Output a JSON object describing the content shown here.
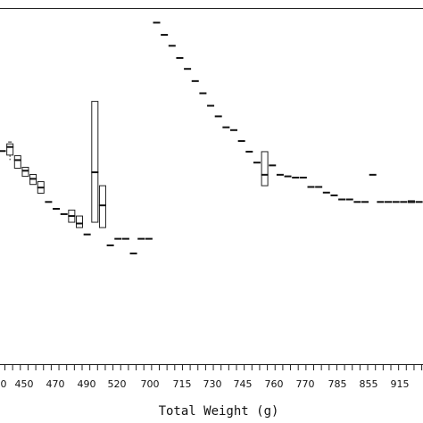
{
  "chart_data": {
    "type": "boxplot",
    "xlabel": "Total Weight (g)",
    "ylabel": "",
    "title": "",
    "x_tick_labels": [
      "0",
      "450",
      "470",
      "490",
      "520",
      "700",
      "715",
      "730",
      "745",
      "760",
      "770",
      "785",
      "855",
      "915"
    ],
    "ylim": [
      0,
      100
    ],
    "grid": false,
    "groups": [
      {
        "index": 0,
        "median": 58.5
      },
      {
        "index": 1,
        "q1": 57.2,
        "median": 59.8,
        "q3": 60.8,
        "whisker_low": 55.6,
        "whisker_high": 61.4
      },
      {
        "index": 2,
        "q1": 53.0,
        "median": 55.6,
        "q3": 57.0
      },
      {
        "index": 3,
        "q1": 50.4,
        "median": 52.2,
        "q3": 53.3
      },
      {
        "index": 4,
        "q1": 47.8,
        "median": 49.6,
        "q3": 51.0
      },
      {
        "index": 5,
        "q1": 45.0,
        "median": 46.8,
        "q3": 48.7
      },
      {
        "index": 6,
        "median": 42.2
      },
      {
        "index": 7,
        "median": 40.0
      },
      {
        "index": 8,
        "median": 38.3
      },
      {
        "index": 9,
        "q1": 35.7,
        "median": 37.7,
        "q3": 39.6
      },
      {
        "index": 10,
        "q1": 34.0,
        "median": 35.3,
        "q3": 37.7
      },
      {
        "index": 11,
        "median": 31.8
      },
      {
        "index": 12,
        "q1": 35.7,
        "median": 51.7,
        "q3": 74.4
      },
      {
        "index": 13,
        "q1": 34.0,
        "median": 41.1,
        "q3": 47.4
      },
      {
        "index": 14,
        "median": 28.3
      },
      {
        "index": 15,
        "median": 30.4
      },
      {
        "index": 16,
        "median": 30.4
      },
      {
        "index": 17,
        "median": 25.7
      },
      {
        "index": 18,
        "median": 30.4
      },
      {
        "index": 19,
        "median": 30.4
      },
      {
        "index": 20,
        "median": 99.6
      },
      {
        "index": 21,
        "median": 95.7
      },
      {
        "index": 22,
        "median": 92.2
      },
      {
        "index": 23,
        "median": 88.3
      },
      {
        "index": 24,
        "median": 84.8
      },
      {
        "index": 25,
        "median": 80.9
      },
      {
        "index": 26,
        "median": 77.0
      },
      {
        "index": 27,
        "median": 73.0
      },
      {
        "index": 28,
        "median": 69.6
      },
      {
        "index": 29,
        "median": 66.1
      },
      {
        "index": 30,
        "median": 65.2
      },
      {
        "index": 31,
        "median": 61.7
      },
      {
        "index": 32,
        "median": 58.3
      },
      {
        "index": 33,
        "median": 54.8
      },
      {
        "index": 34,
        "q1": 47.4,
        "median": 50.9,
        "q3": 58.3
      },
      {
        "index": 35,
        "median": 53.9
      },
      {
        "index": 36,
        "median": 50.9
      },
      {
        "index": 37,
        "median": 50.4
      },
      {
        "index": 38,
        "median": 50.0
      },
      {
        "index": 39,
        "median": 50.0
      },
      {
        "index": 40,
        "median": 47.0
      },
      {
        "index": 41,
        "median": 47.0
      },
      {
        "index": 42,
        "median": 45.2
      },
      {
        "index": 43,
        "median": 44.3
      },
      {
        "index": 44,
        "median": 43.0
      },
      {
        "index": 45,
        "median": 43.0
      },
      {
        "index": 46,
        "median": 42.2
      },
      {
        "index": 47,
        "median": 42.2
      },
      {
        "index": 48,
        "median": 50.9
      },
      {
        "index": 49,
        "median": 42.2
      },
      {
        "index": 50,
        "median": 42.2
      },
      {
        "index": 51,
        "median": 42.2
      },
      {
        "index": 52,
        "median": 42.2
      },
      {
        "index": 53,
        "q1": 42.0,
        "median": 42.2,
        "q3": 42.6
      },
      {
        "index": 54,
        "median": 42.2
      },
      {
        "index": 55,
        "median": 42.2
      },
      {
        "index": 56,
        "median": 42.2
      }
    ]
  }
}
